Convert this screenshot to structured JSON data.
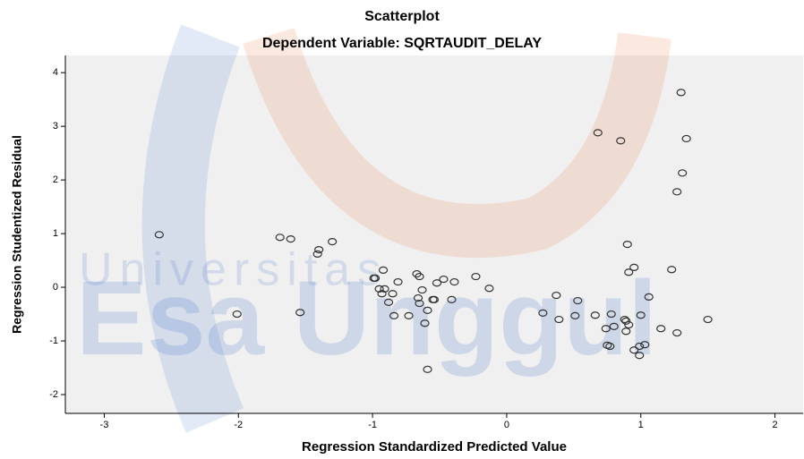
{
  "chart_data": {
    "type": "scatter",
    "title": "Scatterplot",
    "subtitle": "Dependent Variable: SQRTAUDIT_DELAY",
    "x_label": "Regression Standardized Predicted Value",
    "y_label": "Regression Studentized Residual",
    "watermark": [
      "Universitas",
      "Esa Unggul"
    ],
    "x": [
      -2.59,
      -2.01,
      -1.69,
      -1.61,
      -1.54,
      -1.4,
      -1.41,
      -1.3,
      -0.99,
      -0.98,
      -0.92,
      -0.95,
      -0.91,
      -0.93,
      -0.85,
      -0.88,
      -0.84,
      -0.81,
      -0.73,
      -0.67,
      -0.65,
      -0.66,
      -0.65,
      -0.63,
      -0.61,
      -0.59,
      -0.55,
      -0.54,
      -0.52,
      -0.47,
      -0.41,
      -0.39,
      -0.59,
      -0.23,
      -0.13,
      0.27,
      0.37,
      0.39,
      0.51,
      0.53,
      0.66,
      0.68,
      0.74,
      0.75,
      0.77,
      0.78,
      0.8,
      0.85,
      0.88,
      0.89,
      0.89,
      0.91,
      0.9,
      0.91,
      0.95,
      0.95,
      0.99,
      1.0,
      0.99,
      1.03,
      1.06,
      1.15,
      1.23,
      1.27,
      1.27,
      1.3,
      1.31,
      1.34,
      1.5
    ],
    "values": [
      0.98,
      -0.5,
      0.93,
      0.9,
      -0.47,
      0.7,
      0.62,
      0.85,
      0.17,
      0.17,
      0.32,
      -0.03,
      -0.03,
      -0.12,
      -0.12,
      -0.28,
      -0.53,
      0.1,
      -0.53,
      0.25,
      0.2,
      -0.2,
      -0.3,
      -0.05,
      -0.67,
      -0.43,
      -0.23,
      -0.23,
      0.08,
      0.15,
      -0.23,
      0.1,
      -1.53,
      0.2,
      -0.02,
      -0.48,
      -0.15,
      -0.6,
      -0.53,
      -0.25,
      -0.52,
      2.88,
      -0.77,
      -1.08,
      -1.1,
      -0.5,
      -0.73,
      2.73,
      -0.6,
      -0.63,
      -0.82,
      -0.7,
      0.8,
      0.28,
      0.37,
      -1.17,
      -1.1,
      -0.52,
      -1.27,
      -1.07,
      -0.18,
      -0.77,
      0.33,
      1.78,
      -0.85,
      3.63,
      2.13,
      2.77,
      -0.6
    ],
    "color": "#333333",
    "plot_background": "#f0f0f0",
    "xlim": [
      -3.29,
      2.21
    ],
    "ylim": [
      -2.35,
      4.32
    ],
    "xticks": [
      -3,
      -2,
      -1,
      0,
      1,
      2
    ],
    "yticks": [
      -2,
      -1,
      0,
      1,
      2,
      3,
      4
    ],
    "grid": false
  }
}
